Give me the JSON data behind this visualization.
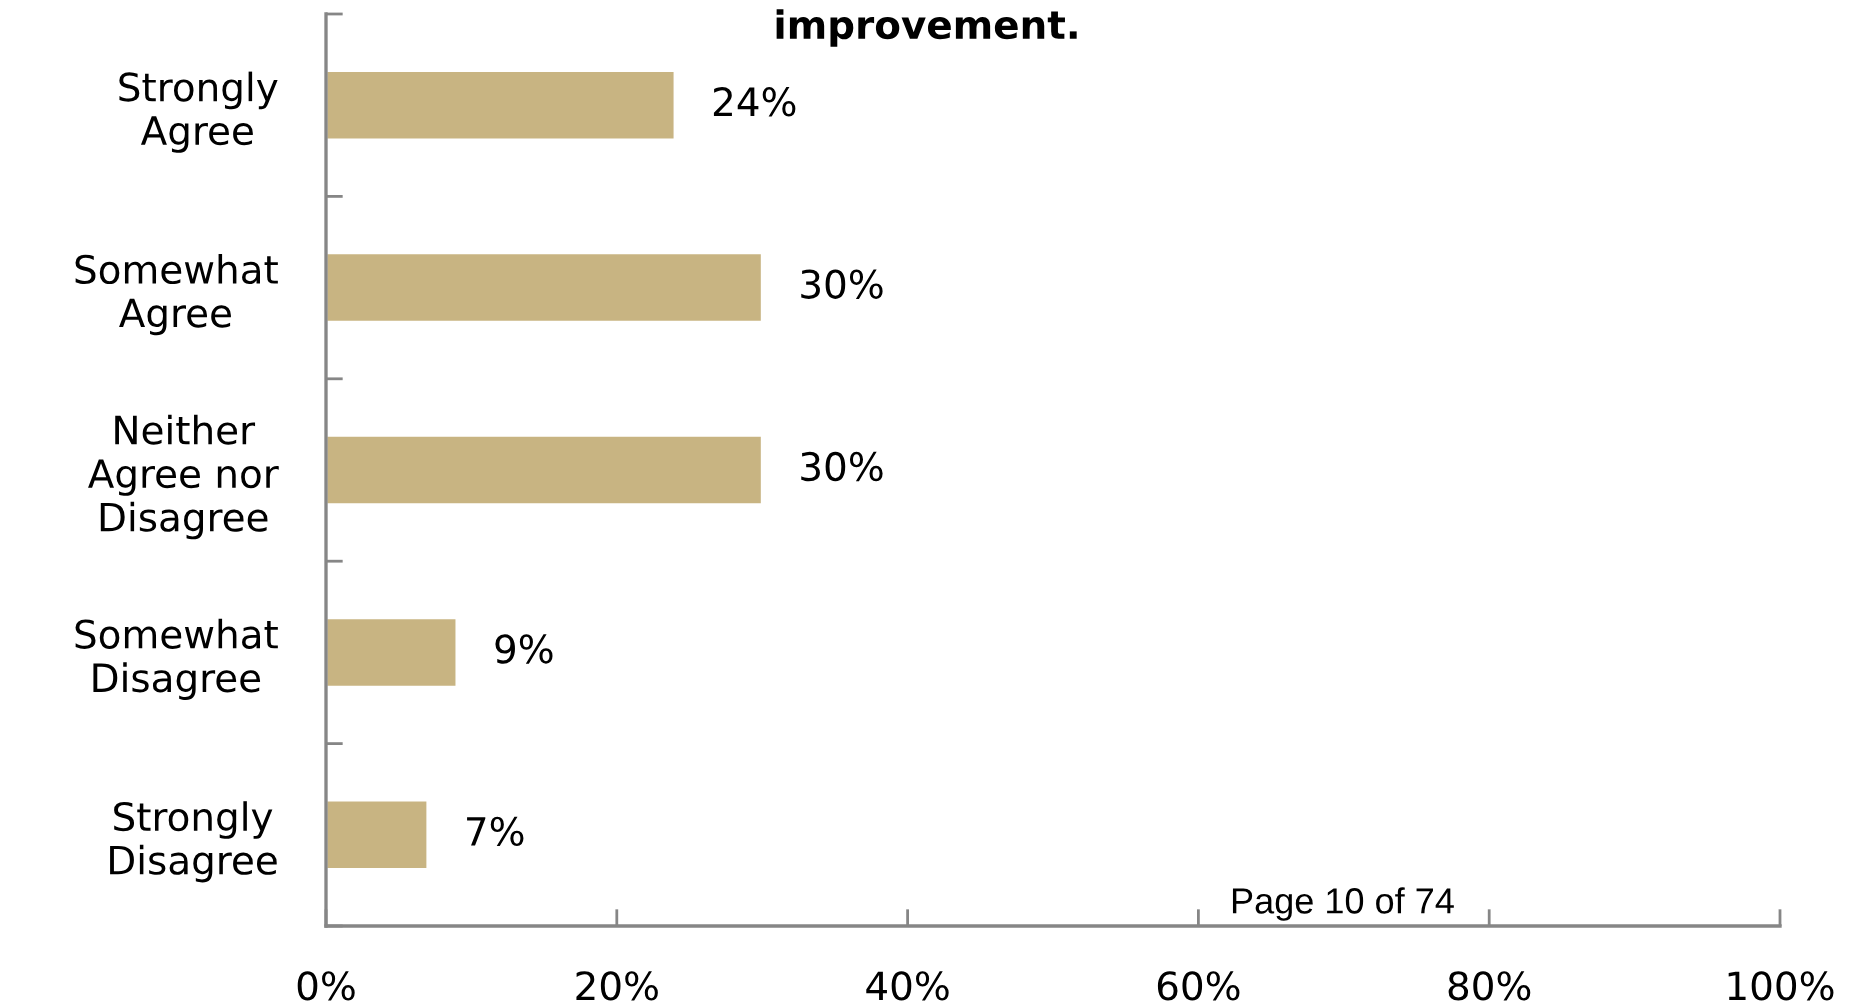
{
  "chart_data": {
    "type": "bar",
    "orientation": "horizontal",
    "title": "improvement.",
    "categories": [
      "Strongly\nAgree",
      "Somewhat\nAgree",
      "Neither\nAgree nor\nDisagree",
      "Somewhat\nDisagree",
      "Strongly\nDisagree"
    ],
    "values": [
      24,
      30,
      30,
      9,
      7
    ],
    "color": "#c8b482",
    "value_labels": [
      "24%",
      "30%",
      "30%",
      "9%",
      "7%"
    ],
    "xlim": [
      0,
      100
    ],
    "xticks": [
      {
        "value": 0,
        "label": "0%"
      },
      {
        "value": 20,
        "label": "20%"
      },
      {
        "value": 40,
        "label": "40%"
      },
      {
        "value": 60,
        "label": "60%"
      },
      {
        "value": 80,
        "label": "80%"
      },
      {
        "value": 100,
        "label": "100%"
      }
    ],
    "annotations": [
      "Page 10 of 74"
    ]
  }
}
